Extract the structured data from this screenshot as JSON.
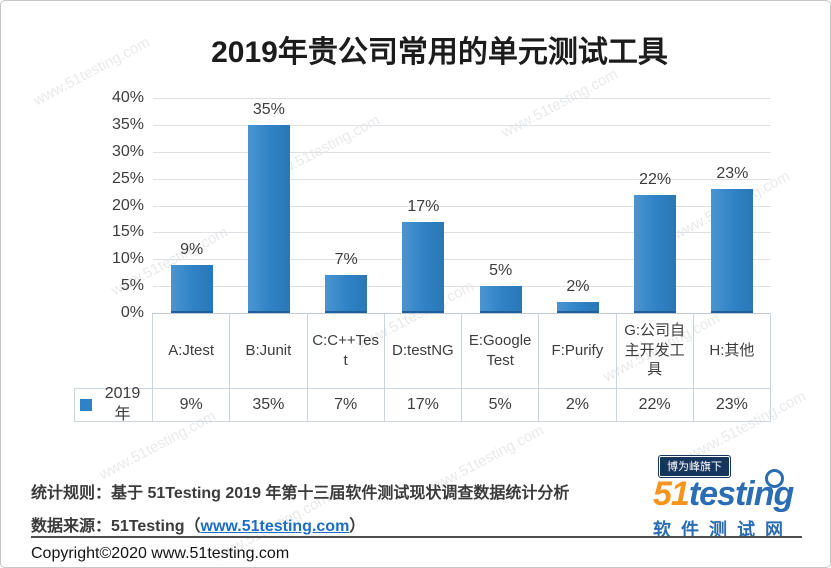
{
  "page": {
    "watermark_text": "www.51testing.com"
  },
  "chart_data": {
    "type": "bar",
    "title": "2019年贵公司常用的单元测试工具",
    "categories": [
      "A:Jtest",
      "B:Junit",
      "C:C++Test",
      "D:testNG",
      "E:Google Test",
      "F:Purify",
      "G:公司自主开发工具",
      "H:其他"
    ],
    "series": [
      {
        "name": "2019年",
        "values": [
          9,
          35,
          7,
          17,
          5,
          2,
          22,
          23
        ]
      }
    ],
    "value_labels": [
      "9%",
      "35%",
      "7%",
      "17%",
      "5%",
      "2%",
      "22%",
      "23%"
    ],
    "xlabel": "",
    "ylabel": "",
    "ylim": [
      0,
      40
    ],
    "ytick_step": 5,
    "ytick_labels": [
      "40%",
      "35%",
      "30%",
      "25%",
      "20%",
      "15%",
      "10%",
      "5%",
      "0%"
    ],
    "grid": true,
    "legend_position": "table-row-left",
    "bar_color": "#2E82C5"
  },
  "data_table": {
    "legend_label": "2019年",
    "legend_marker_color": "#2E82C5"
  },
  "footer": {
    "stat_rule": "统计规则：基于 51Testing 2019 年第十三届软件测试现状调查数据统计分析",
    "source_prefix": "数据来源：51Testing（",
    "source_link": "www.51testing.com",
    "source_suffix": "）",
    "copyright": "Copyright©2020 www.51testing.com"
  },
  "logo": {
    "badge": "博为峰旗下",
    "brand_51": "51",
    "brand_testing": "testing",
    "subtitle": "软件测试网",
    "colors": {
      "badge_bg": "#17365D",
      "orange": "#F7941E",
      "blue": "#2A6DB5"
    }
  }
}
